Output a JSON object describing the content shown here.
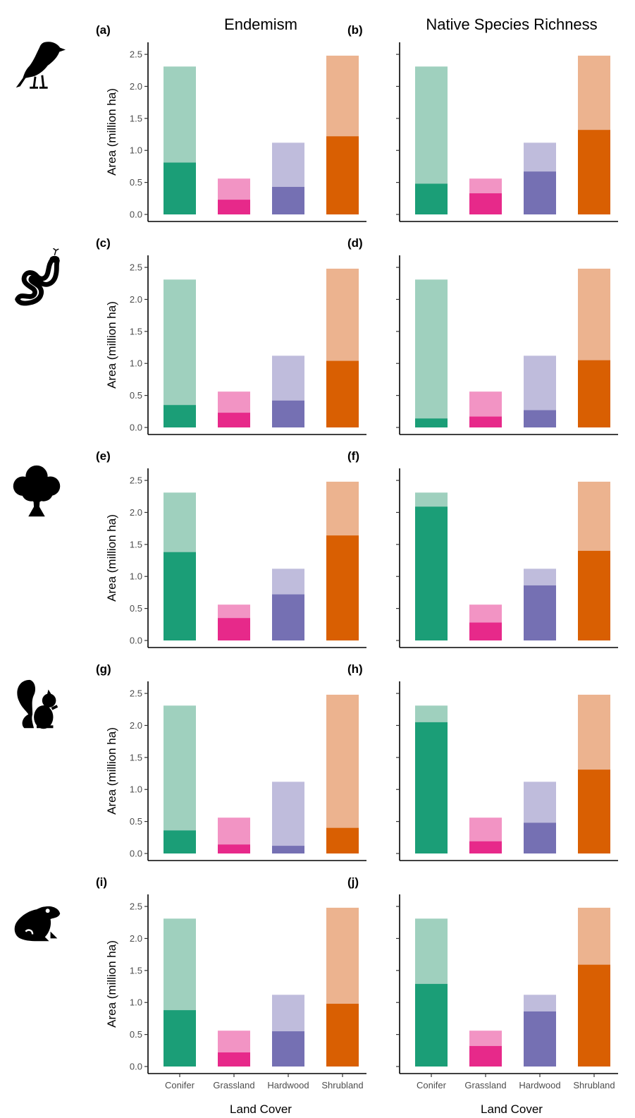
{
  "column_titles": [
    "Endemism",
    "Native Species Richness"
  ],
  "y_axis_label": "Area (million ha)",
  "x_axis_label": "Land Cover",
  "taxon_icons": [
    "bird-icon",
    "snake-icon",
    "tree-icon",
    "squirrel-icon",
    "frog-icon"
  ],
  "chart_data": {
    "type": "bar",
    "stacked": "overlay",
    "categories": [
      "Conifer",
      "Grassland",
      "Hardwood",
      "Shrubland"
    ],
    "ylim": [
      0,
      2.6
    ],
    "yticks": [
      "0.0",
      "0.5",
      "1.0",
      "1.5",
      "2.0",
      "2.5"
    ],
    "total_area": [
      2.31,
      0.56,
      1.12,
      2.48
    ],
    "colors": {
      "dark": [
        "#1b9e77",
        "#e7298a",
        "#7570b3",
        "#d95f02"
      ],
      "light": [
        "#9fd0be",
        "#f294c4",
        "#bfbcdc",
        "#ecb38f"
      ]
    },
    "grid": false,
    "panels": [
      {
        "label": "(a)",
        "row": 0,
        "col": 0,
        "values": [
          0.81,
          0.23,
          0.43,
          1.22
        ]
      },
      {
        "label": "(b)",
        "row": 0,
        "col": 1,
        "values": [
          0.48,
          0.33,
          0.67,
          1.32
        ]
      },
      {
        "label": "(c)",
        "row": 1,
        "col": 0,
        "values": [
          0.35,
          0.23,
          0.42,
          1.04
        ]
      },
      {
        "label": "(d)",
        "row": 1,
        "col": 1,
        "values": [
          0.14,
          0.17,
          0.27,
          1.05
        ]
      },
      {
        "label": "(e)",
        "row": 2,
        "col": 0,
        "values": [
          1.38,
          0.35,
          0.72,
          1.64
        ]
      },
      {
        "label": "(f)",
        "row": 2,
        "col": 1,
        "values": [
          2.09,
          0.28,
          0.86,
          1.4
        ]
      },
      {
        "label": "(g)",
        "row": 3,
        "col": 0,
        "values": [
          0.36,
          0.14,
          0.12,
          0.4
        ]
      },
      {
        "label": "(h)",
        "row": 3,
        "col": 1,
        "values": [
          2.05,
          0.19,
          0.48,
          1.31
        ]
      },
      {
        "label": "(i)",
        "row": 4,
        "col": 0,
        "values": [
          0.88,
          0.22,
          0.55,
          0.98
        ]
      },
      {
        "label": "(j)",
        "row": 4,
        "col": 1,
        "values": [
          1.29,
          0.32,
          0.86,
          1.59
        ]
      }
    ]
  }
}
